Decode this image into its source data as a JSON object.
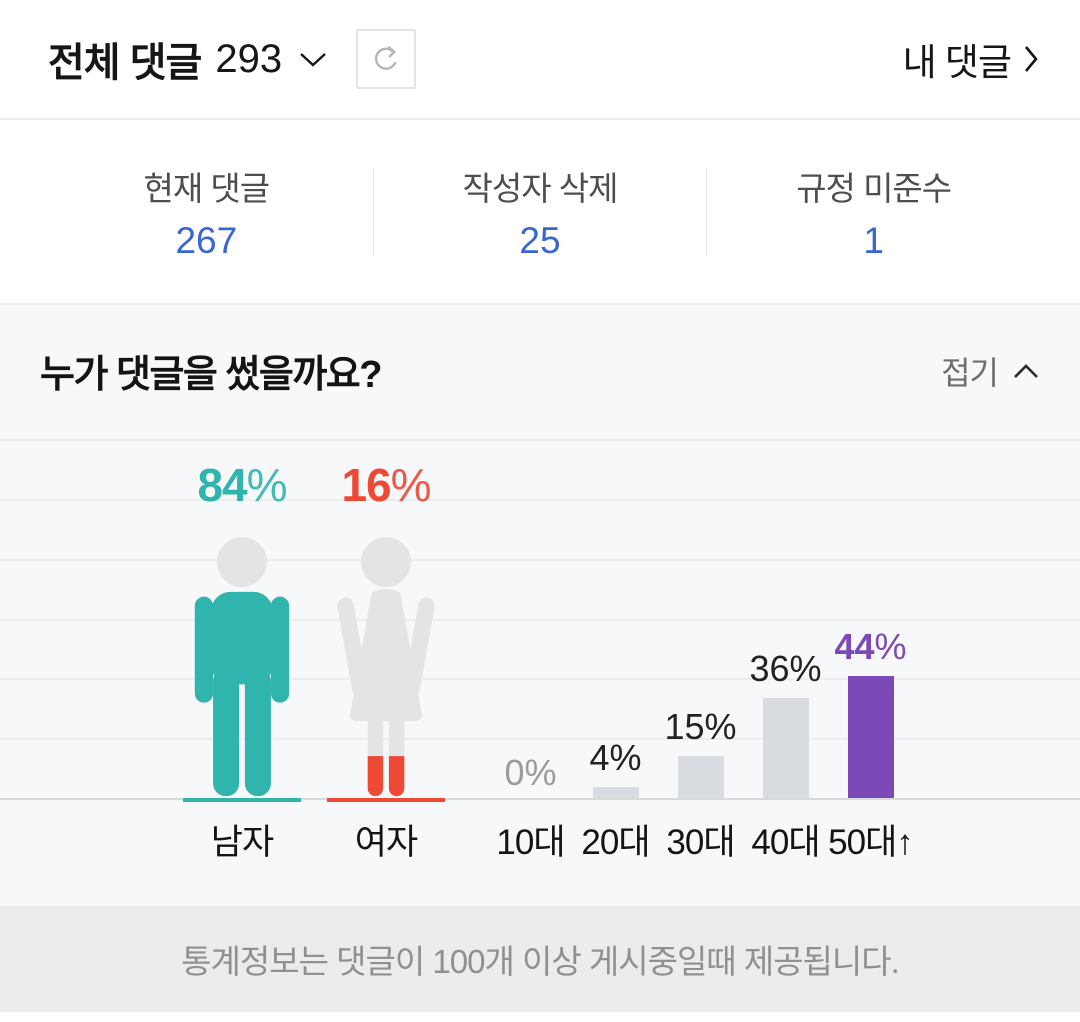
{
  "header": {
    "title": "전체 댓글",
    "count": "293",
    "my_comments": "내 댓글"
  },
  "stats": {
    "items": [
      {
        "label": "현재 댓글",
        "value": "267"
      },
      {
        "label": "작성자 삭제",
        "value": "25"
      },
      {
        "label": "규정 미준수",
        "value": "1"
      }
    ]
  },
  "section": {
    "title": "누가 댓글을 썼을까요?",
    "collapse_label": "접기"
  },
  "chart_data": {
    "type": "bar",
    "title": "누가 댓글을 썼을까요?",
    "grid": true,
    "unit": "%",
    "series": [
      {
        "name": "gender",
        "categories": [
          "남자",
          "여자"
        ],
        "values": [
          84,
          16
        ],
        "colors": [
          "#2fb5ae",
          "#ee4934"
        ]
      },
      {
        "name": "age",
        "categories": [
          "10대",
          "20대",
          "30대",
          "40대",
          "50대↑"
        ],
        "values": [
          0,
          4,
          15,
          36,
          44
        ],
        "highlight_category": "50대↑"
      }
    ],
    "ylim": [
      0,
      130
    ]
  },
  "colors": {
    "male": "#2fb5ae",
    "female": "#ee4934",
    "figure_gray": "#e3e4e6",
    "bar_gray": "#d9dde2",
    "highlight_purple": "#7b4ab8",
    "zero_label": "#9b9b9b",
    "value_label": "#222222",
    "stat_blue": "#3866d2"
  },
  "footer": {
    "notice": "통계정보는 댓글이 100개 이상 게시중일때 제공됩니다."
  }
}
